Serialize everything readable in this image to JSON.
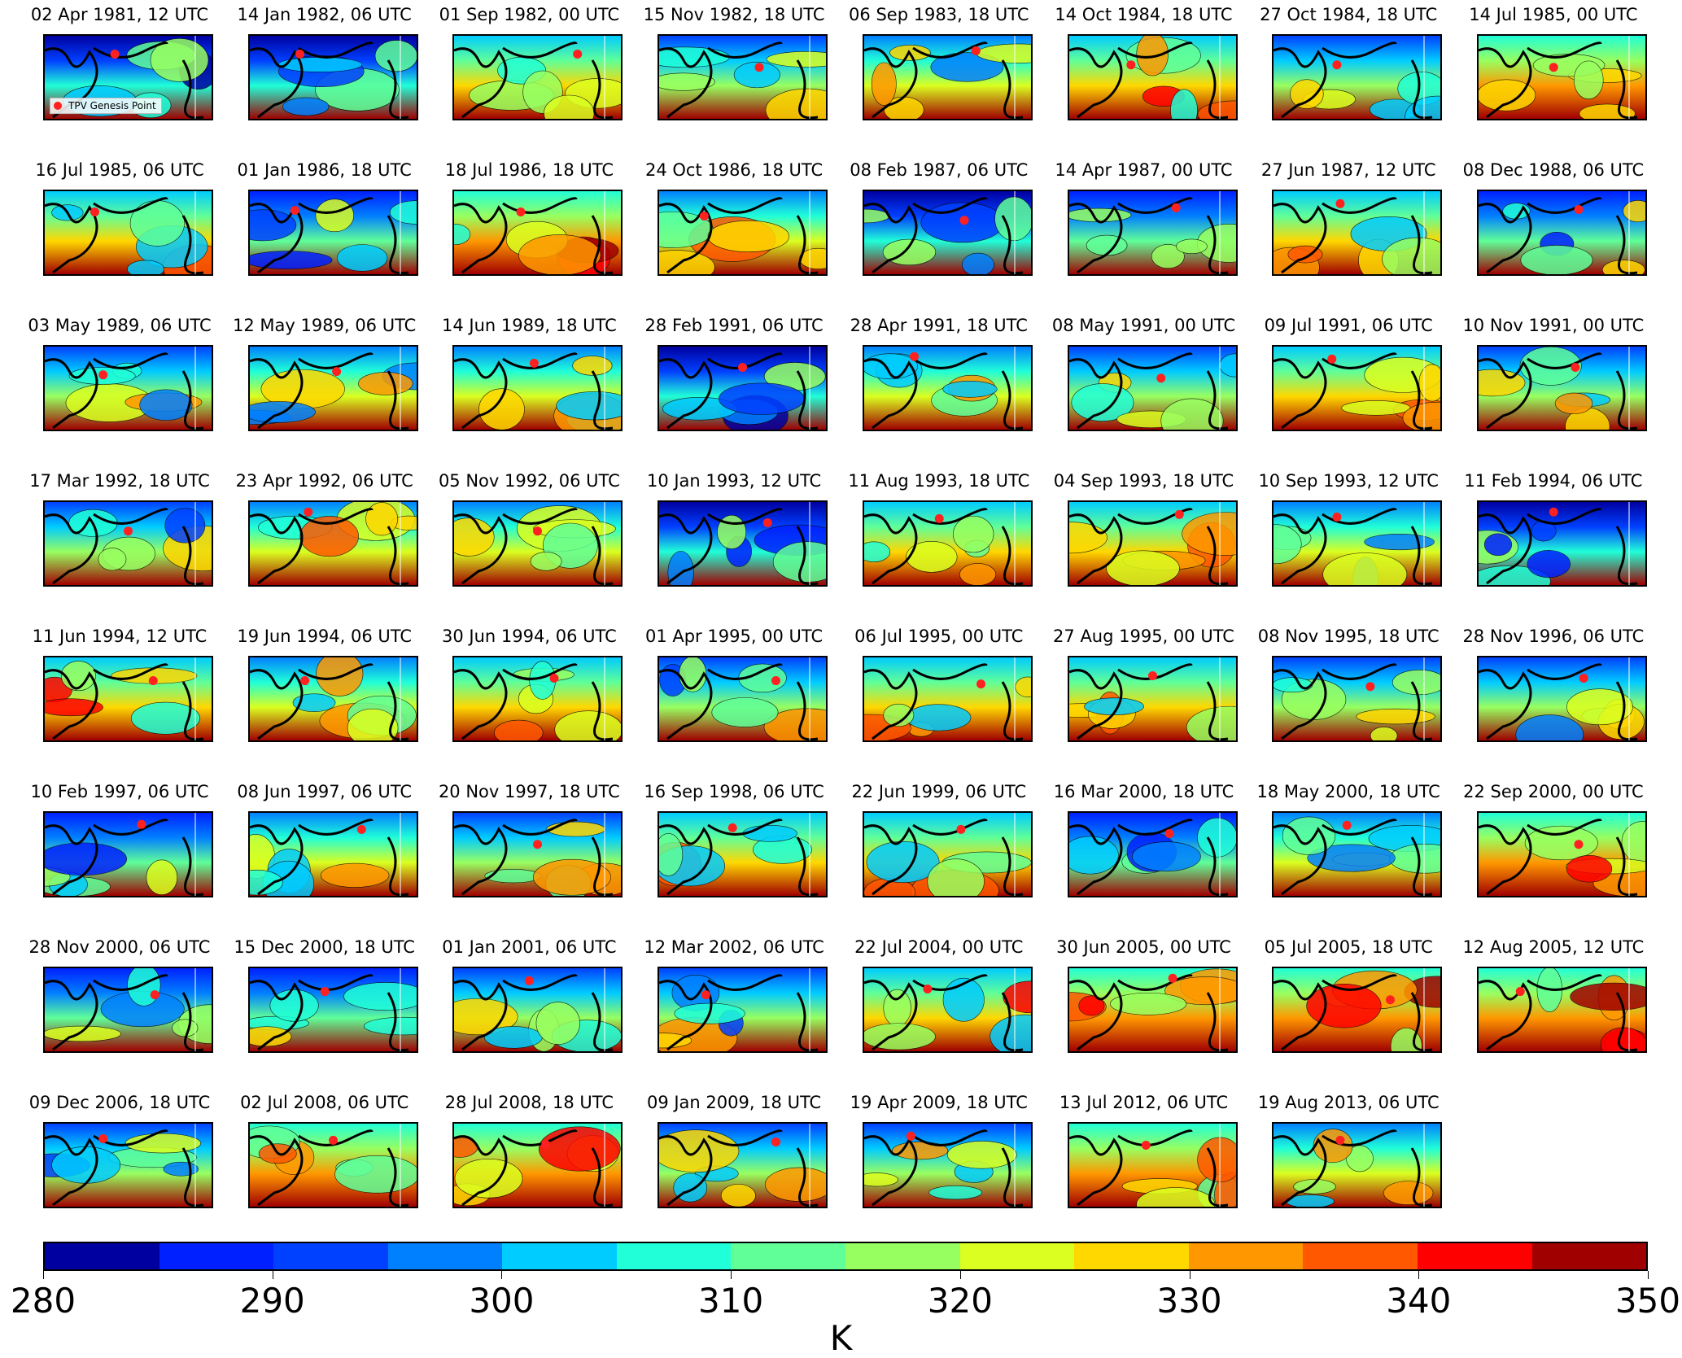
{
  "panels": [
    "02 Apr 1981, 12 UTC",
    "14 Jan 1982, 06 UTC",
    "01 Sep 1982, 00 UTC",
    "15 Nov 1982, 18 UTC",
    "06 Sep 1983, 18 UTC",
    "14 Oct 1984, 18 UTC",
    "27 Oct 1984, 18 UTC",
    "14 Jul 1985, 00 UTC",
    "16 Jul 1985, 06 UTC",
    "01 Jan 1986, 18 UTC",
    "18 Jul 1986, 18 UTC",
    "24 Oct 1986, 18 UTC",
    "08 Feb 1987, 06 UTC",
    "14 Apr 1987, 00 UTC",
    "27 Jun 1987, 12 UTC",
    "08 Dec 1988, 06 UTC",
    "03 May 1989, 06 UTC",
    "12 May 1989, 06 UTC",
    "14 Jun 1989, 18 UTC",
    "28 Feb 1991, 06 UTC",
    "28 Apr 1991, 18 UTC",
    "08 May 1991, 00 UTC",
    "09 Jul 1991, 06 UTC",
    "10 Nov 1991, 00 UTC",
    "17 Mar 1992, 18 UTC",
    "23 Apr 1992, 06 UTC",
    "05 Nov 1992, 06 UTC",
    "10 Jan 1993, 12 UTC",
    "11 Aug 1993, 18 UTC",
    "04 Sep 1993, 18 UTC",
    "10 Sep 1993, 12 UTC",
    "11 Feb 1994, 06 UTC",
    "11 Jun 1994, 12 UTC",
    "19 Jun 1994, 06 UTC",
    "30 Jun 1994, 06 UTC",
    "01 Apr 1995, 00 UTC",
    "06 Jul 1995, 00 UTC",
    "27 Aug 1995, 00 UTC",
    "08 Nov 1995, 18 UTC",
    "28 Nov 1996, 06 UTC",
    "10 Feb 1997, 06 UTC",
    "08 Jun 1997, 06 UTC",
    "20 Nov 1997, 18 UTC",
    "16 Sep 1998, 06 UTC",
    "22 Jun 1999, 06 UTC",
    "16 Mar 2000, 18 UTC",
    "18 May 2000, 18 UTC",
    "22 Sep 2000, 00 UTC",
    "28 Nov 2000, 06 UTC",
    "15 Dec 2000, 18 UTC",
    "01 Jan 2001, 06 UTC",
    "12 Mar 2002, 06 UTC",
    "22 Jul 2004, 00 UTC",
    "30 Jun 2005, 00 UTC",
    "05 Jul 2005, 18 UTC",
    "12 Aug 2005, 12 UTC",
    "09 Dec 2006, 18 UTC",
    "02 Jul 2008, 06 UTC",
    "28 Jul 2008, 18 UTC",
    "09 Jan 2009, 18 UTC",
    "19 Apr 2009, 18 UTC",
    "13 Jul 2012, 06 UTC",
    "19 Aug 2013, 06 UTC"
  ],
  "legend": {
    "label": "TPV Genesis Point",
    "marker_color": "#ff2020"
  },
  "colorbar": {
    "label": "K",
    "range": [
      280,
      350
    ],
    "ticks": [
      "280",
      "290",
      "300",
      "310",
      "320",
      "330",
      "340",
      "350"
    ],
    "colors": [
      "#0000a0",
      "#0020ff",
      "#0040ff",
      "#0080ff",
      "#00ccff",
      "#20ffd8",
      "#60ff98",
      "#98ff60",
      "#dbff20",
      "#ffd800",
      "#ff9800",
      "#ff5800",
      "#ff0000",
      "#a00000"
    ]
  }
}
